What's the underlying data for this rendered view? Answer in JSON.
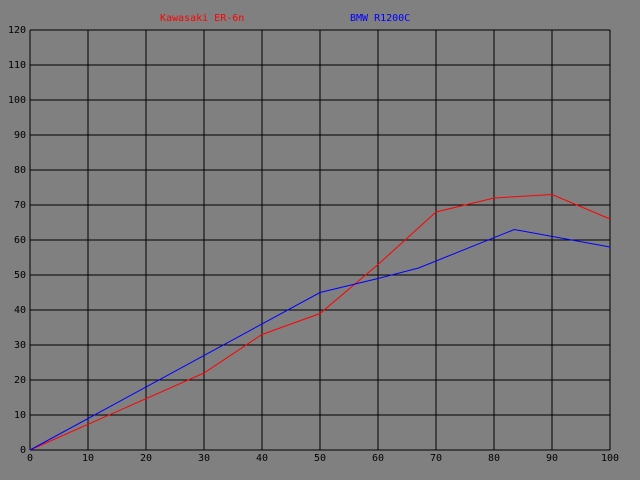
{
  "chart_data": {
    "type": "line",
    "series": [
      {
        "name": "Kawasaki ER-6n",
        "color": "#ff0000",
        "x": [
          0,
          30,
          40,
          50,
          60,
          70,
          80,
          90,
          100
        ],
        "values": [
          0,
          22,
          33,
          39,
          53,
          68,
          72,
          73,
          66
        ]
      },
      {
        "name": "BMW R1200C",
        "color": "#0000ff",
        "x": [
          0,
          50,
          60,
          67,
          83.5,
          100
        ],
        "values": [
          0,
          45,
          49,
          52,
          63,
          58
        ]
      }
    ],
    "xlim": [
      0,
      100
    ],
    "xticks": [
      0,
      10,
      20,
      30,
      40,
      50,
      60,
      70,
      80,
      90,
      100
    ],
    "ylim": [
      0,
      120
    ],
    "yticks": [
      0,
      10,
      20,
      30,
      40,
      50,
      60,
      70,
      80,
      90,
      100,
      110,
      120
    ],
    "grid": true,
    "background": "#808080",
    "grid_color": "#000000"
  }
}
